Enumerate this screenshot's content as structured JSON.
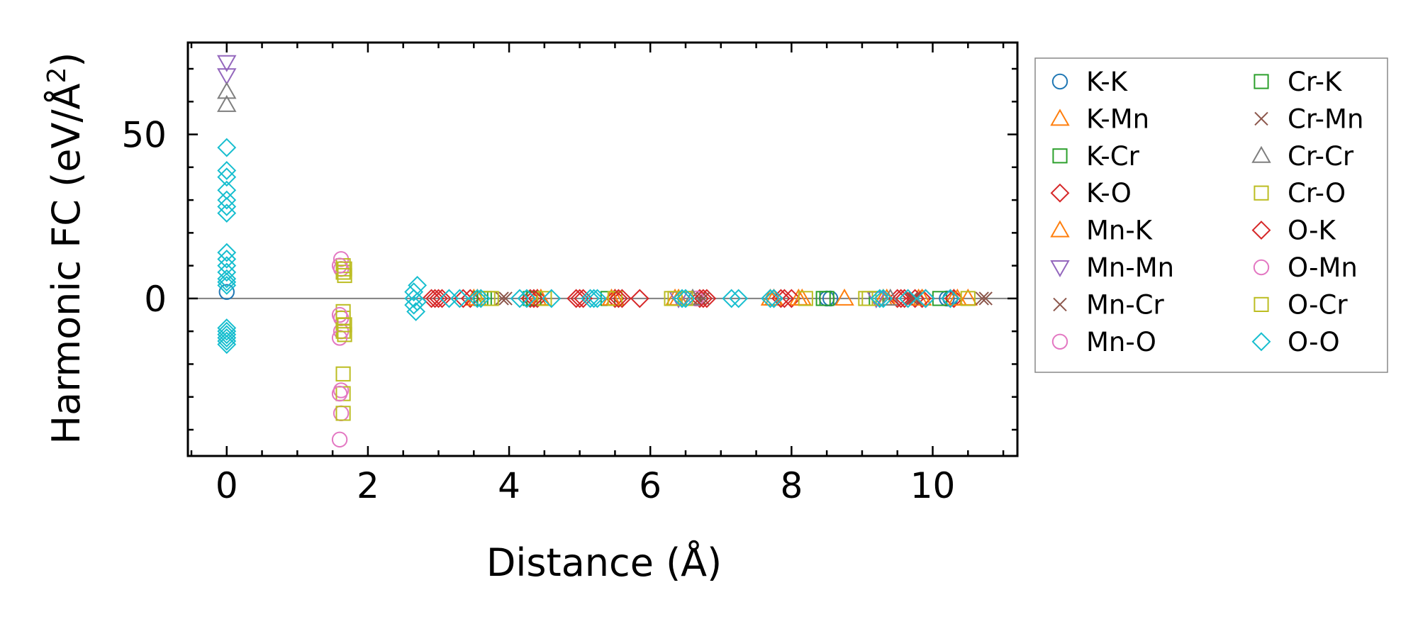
{
  "chart_data": {
    "type": "scatter",
    "title": "",
    "xlabel": "Distance (Å)",
    "ylabel_main": "Harmonic FC (eV/Å",
    "ylabel_sup": "2",
    "ylabel_close": ")",
    "xlim": [
      -0.55,
      11.2
    ],
    "ylim": [
      -48,
      78
    ],
    "x_ticks": [
      0,
      2,
      4,
      6,
      8,
      10
    ],
    "x_tick_labels": [
      "0",
      "2",
      "4",
      "6",
      "8",
      "10"
    ],
    "x_minor_step": 0.5,
    "y_ticks": [
      0,
      50
    ],
    "y_tick_labels": [
      "0",
      "50"
    ],
    "y_minor_step": 10,
    "zero_line": true,
    "legend_position": "outside-right",
    "series": [
      {
        "name": "K-K",
        "marker": "circle",
        "color": "#1f77b4",
        "x": [
          0,
          8.5,
          8.55,
          10.2,
          10.25
        ],
        "y": [
          2,
          0,
          0,
          0,
          0
        ]
      },
      {
        "name": "K-Mn",
        "marker": "triangle-up",
        "color": "#ff7f0e",
        "x": [
          3.5,
          4.4,
          5.5,
          6.4,
          7.7,
          8.1,
          8.75,
          9.3,
          9.8,
          10.3,
          10.5
        ],
        "y": [
          0,
          0,
          0,
          0,
          0,
          0,
          0,
          0,
          0,
          0,
          0
        ]
      },
      {
        "name": "K-Cr",
        "marker": "square",
        "color": "#2ca02c",
        "x": [
          3.6,
          4.3,
          5.4,
          6.5,
          8.45,
          9.2,
          10.1
        ],
        "y": [
          0,
          0,
          0,
          0,
          0,
          0,
          0
        ]
      },
      {
        "name": "K-O",
        "marker": "diamond",
        "color": "#d62728",
        "x": [
          2.9,
          3.0,
          3.35,
          3.45,
          4.3,
          4.4,
          4.95,
          5.05,
          5.5,
          5.6,
          5.85,
          6.7,
          6.8,
          7.75,
          7.9,
          8.0,
          9.5,
          9.6,
          9.75,
          9.85,
          10.25,
          10.3
        ],
        "y": [
          0,
          0,
          0,
          0,
          0,
          0,
          0,
          0,
          0,
          0,
          0,
          0,
          0,
          0,
          0,
          0,
          0,
          0,
          0,
          0,
          0,
          0
        ]
      },
      {
        "name": "Mn-K",
        "marker": "triangle-up",
        "color": "#ff7f0e",
        "x": [
          3.55,
          4.45,
          5.45,
          6.35,
          7.75,
          8.15,
          9.35,
          9.85,
          10.35
        ],
        "y": [
          0,
          0,
          0,
          0,
          0,
          0,
          0,
          0,
          0
        ]
      },
      {
        "name": "Mn-Mn",
        "marker": "triangle-down",
        "color": "#9467bd",
        "x": [
          0,
          0,
          6.4,
          9.2
        ],
        "y": [
          72,
          68,
          0,
          0
        ]
      },
      {
        "name": "Mn-Cr",
        "marker": "x",
        "color": "#8c564b",
        "x": [
          3.9,
          6.7,
          9.7,
          10.7
        ],
        "y": [
          0,
          0,
          0,
          0
        ]
      },
      {
        "name": "Mn-O",
        "marker": "circle",
        "color": "#e377c2",
        "x": [
          1.62,
          1.62,
          1.62,
          1.62,
          1.62,
          1.62,
          6.65
        ],
        "y": [
          12,
          9,
          -6,
          -10,
          -28,
          -35,
          0
        ]
      },
      {
        "name": "Cr-K",
        "marker": "square",
        "color": "#2ca02c",
        "x": [
          3.65,
          4.35,
          8.5
        ],
        "y": [
          0,
          0,
          0
        ]
      },
      {
        "name": "Cr-Mn",
        "marker": "x",
        "color": "#8c564b",
        "x": [
          3.95,
          6.75,
          9.75,
          10.75
        ],
        "y": [
          0,
          0,
          0,
          0
        ]
      },
      {
        "name": "Cr-Cr",
        "marker": "triangle-up",
        "color": "#7f7f7f",
        "x": [
          0,
          0,
          6.6,
          9.4
        ],
        "y": [
          63,
          59,
          0,
          0
        ]
      },
      {
        "name": "Cr-O",
        "marker": "square",
        "color": "#bcbd22",
        "x": [
          1.65,
          1.65,
          1.65,
          1.65,
          1.65,
          1.65,
          1.65,
          1.65,
          3.7,
          4.5,
          5.5,
          6.3,
          6.5,
          8.2,
          9.1,
          10.5
        ],
        "y": [
          10,
          8,
          -4,
          -6,
          -10,
          -23,
          -29,
          -35,
          0,
          0,
          0,
          0,
          0,
          0,
          0,
          0
        ]
      },
      {
        "name": "O-K",
        "marker": "diamond",
        "color": "#d62728",
        "x": [
          2.95,
          3.05,
          4.35,
          5.0,
          5.55,
          6.75,
          7.85,
          9.55,
          9.9
        ],
        "y": [
          0,
          0,
          0,
          0,
          0,
          0,
          0,
          0,
          0
        ]
      },
      {
        "name": "O-Mn",
        "marker": "circle",
        "color": "#e377c2",
        "x": [
          1.6,
          1.6,
          1.6,
          1.6,
          1.6
        ],
        "y": [
          10,
          -5,
          -12,
          -29,
          -43
        ]
      },
      {
        "name": "O-Cr",
        "marker": "square",
        "color": "#bcbd22",
        "x": [
          1.67,
          1.67,
          1.67,
          1.67,
          3.75,
          6.35,
          9.05
        ],
        "y": [
          9,
          7,
          -8,
          -11,
          0,
          0,
          0
        ]
      },
      {
        "name": "O-O",
        "marker": "diamond",
        "color": "#17becf",
        "x": [
          0,
          0,
          0,
          0,
          0,
          0,
          0,
          0,
          0,
          0,
          0,
          0,
          0,
          0,
          0,
          0,
          0,
          0,
          0,
          0,
          2.65,
          2.65,
          2.65,
          2.68,
          2.7,
          2.7,
          3.15,
          3.3,
          3.55,
          3.6,
          4.15,
          4.25,
          4.6,
          5.15,
          5.2,
          5.25,
          6.45,
          6.5,
          7.15,
          7.25,
          7.7,
          7.75,
          9.25,
          9.3,
          9.65,
          9.9,
          10.25
        ],
        "y": [
          46,
          39,
          37,
          33,
          30,
          28,
          26,
          14,
          12,
          10,
          8,
          6,
          5,
          4,
          -9,
          -10,
          -11,
          -12,
          -13,
          -14,
          2,
          0,
          -2,
          -4,
          4,
          -1,
          0,
          0,
          0,
          0,
          0,
          0,
          0,
          0,
          0,
          0,
          0,
          0,
          0,
          0,
          0,
          0,
          0,
          0,
          0,
          0,
          0
        ]
      }
    ]
  }
}
